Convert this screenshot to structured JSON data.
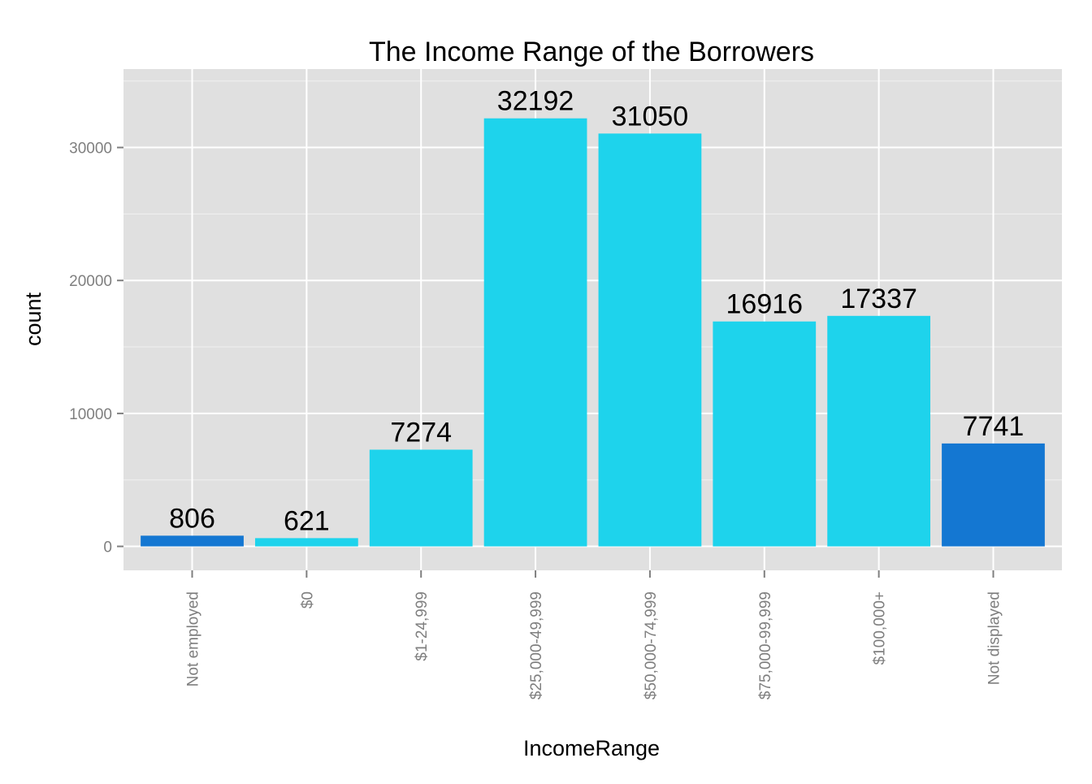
{
  "chart_data": {
    "type": "bar",
    "title": "The Income Range of the Borrowers",
    "xlabel": "IncomeRange",
    "ylabel": "count",
    "categories": [
      "Not employed",
      "$0",
      "$1-24,999",
      "$25,000-49,999",
      "$50,000-74,999",
      "$75,000-99,999",
      "$100,000+",
      "Not displayed"
    ],
    "values": [
      806,
      621,
      7274,
      32192,
      31050,
      16916,
      17337,
      7741
    ],
    "data_labels": [
      "806",
      "621",
      "7274",
      "32192",
      "31050",
      "16916",
      "17337",
      "7741"
    ],
    "bar_colors": [
      "#1477D2",
      "#1ED3EC",
      "#1ED3EC",
      "#1ED3EC",
      "#1ED3EC",
      "#1ED3EC",
      "#1ED3EC",
      "#1477D2"
    ],
    "yticks": [
      0,
      10000,
      20000,
      30000
    ],
    "ytick_labels": [
      "0",
      "10000",
      "20000",
      "30000"
    ],
    "ylim": [
      -1800,
      35900
    ],
    "grid": true,
    "legend": "none",
    "panel_background": "#E0E0E0",
    "grid_color": "#FFFFFF"
  }
}
